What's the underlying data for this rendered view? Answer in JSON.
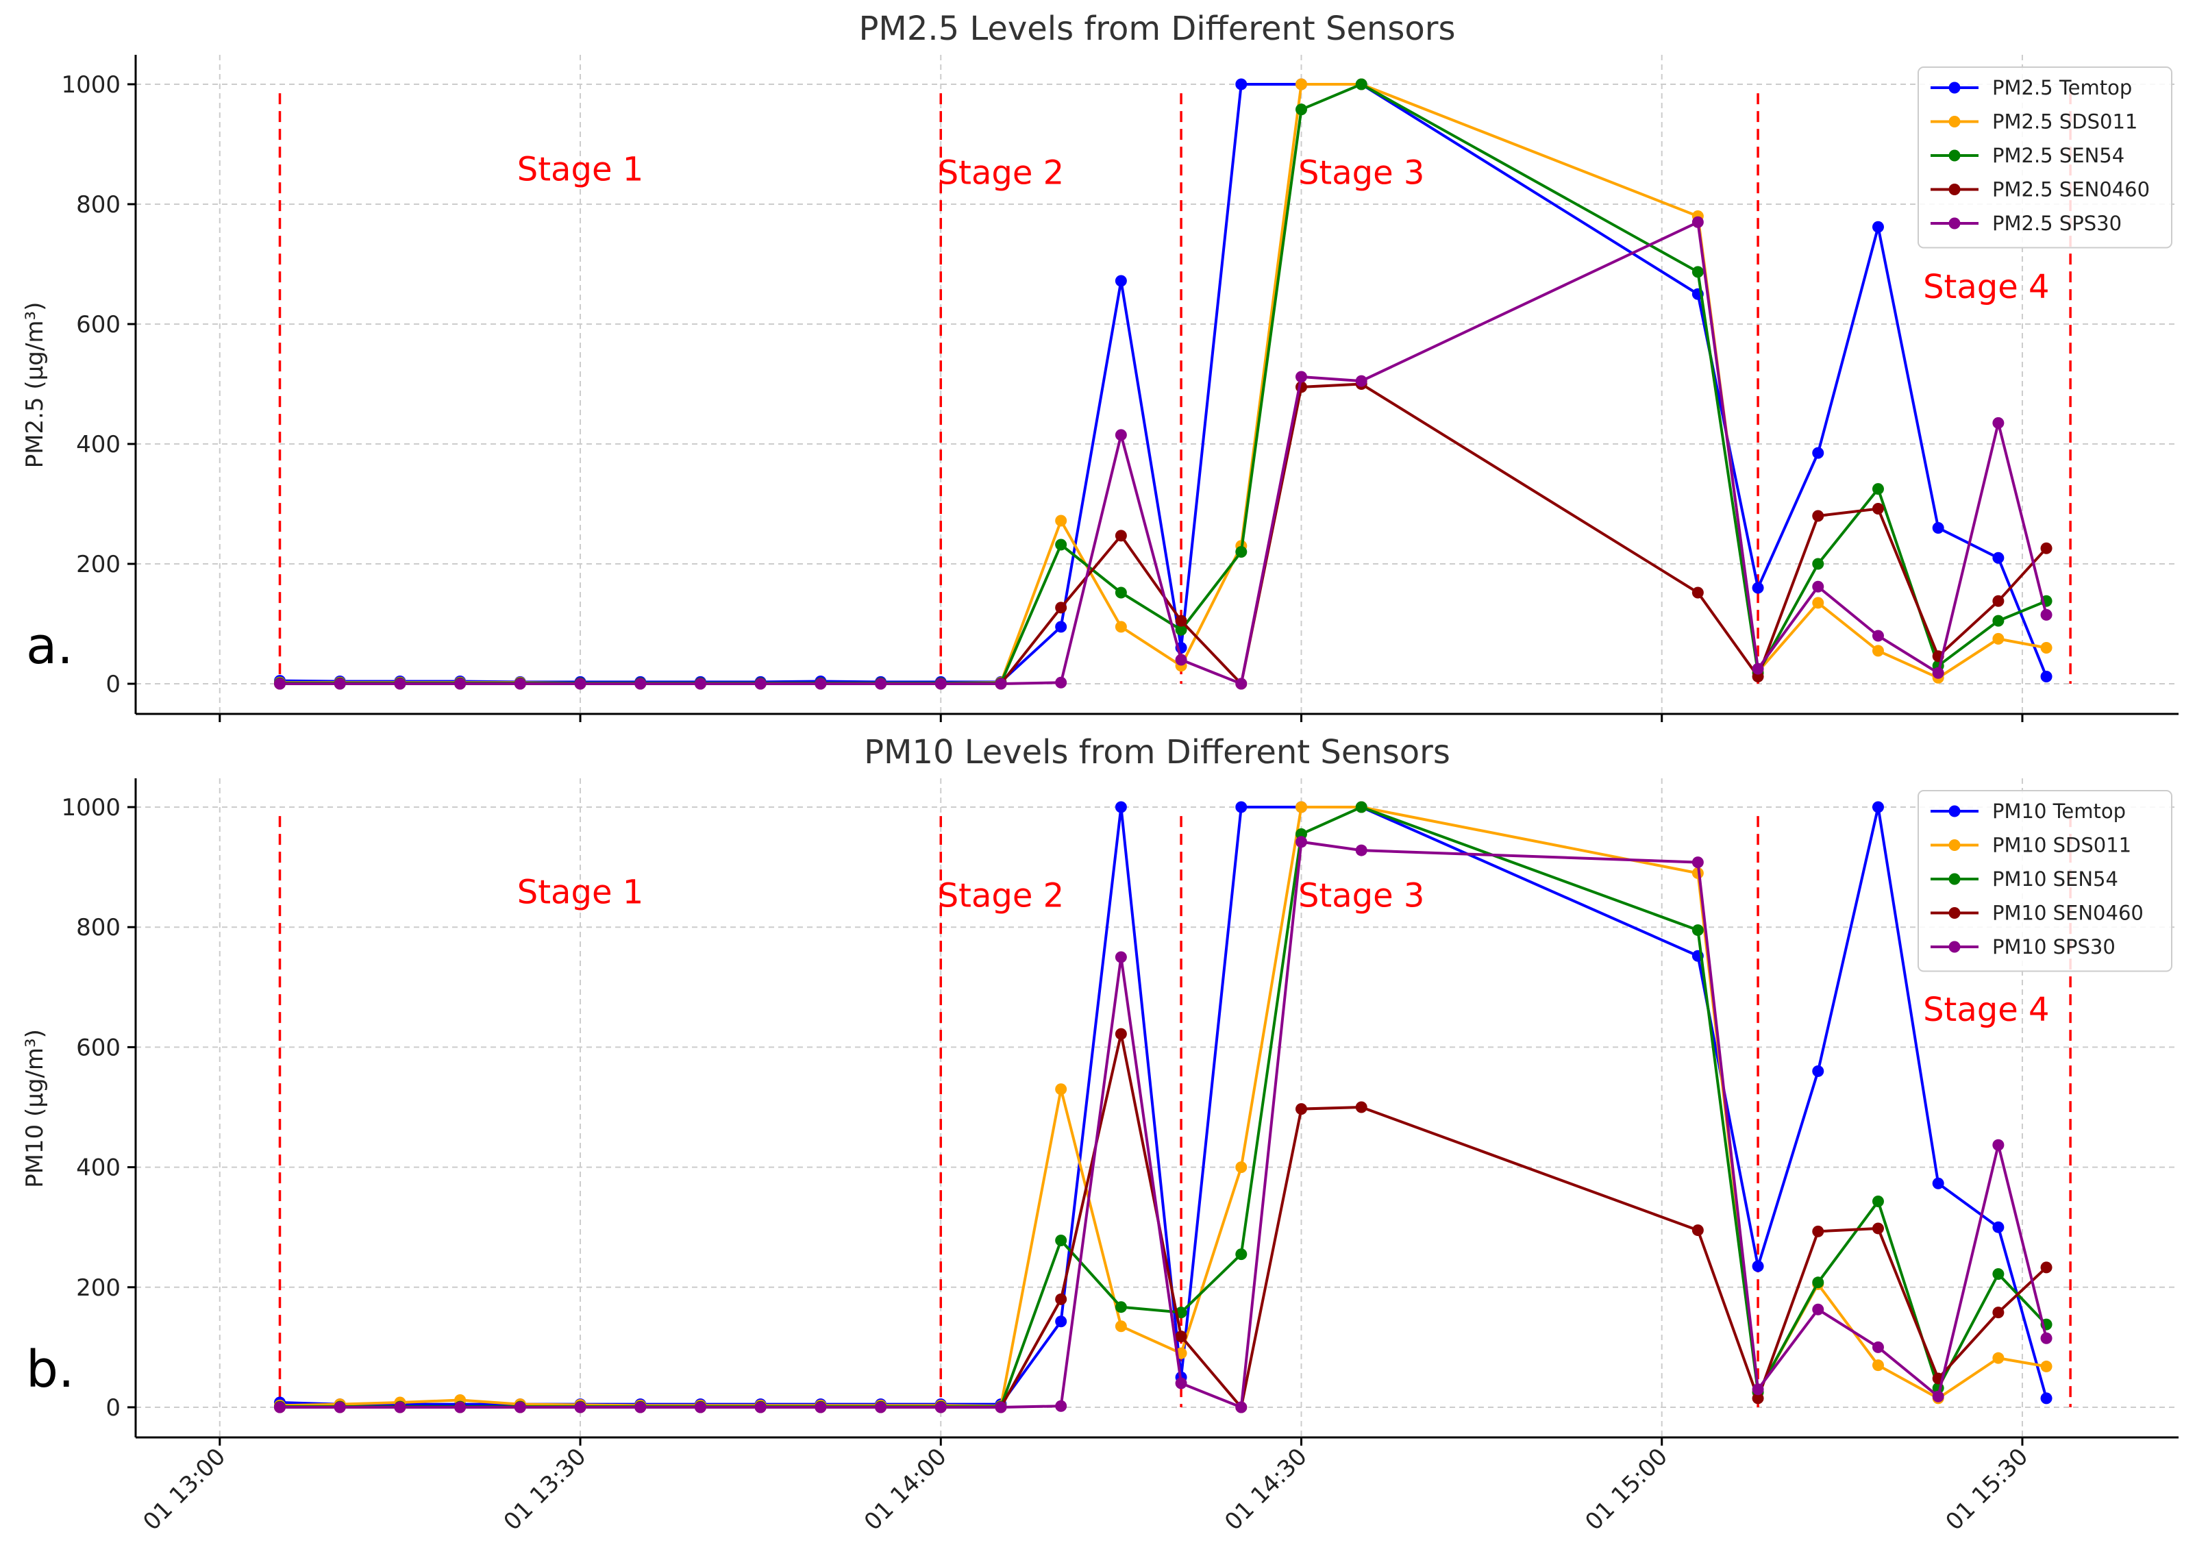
{
  "x_ticks": [
    "01 13:00",
    "01 13:30",
    "01 14:00",
    "01 14:30",
    "01 15:00",
    "01 15:30"
  ],
  "chart_data": [
    {
      "type": "line",
      "panel_label": "a.",
      "title": "PM2.5 Levels from Different Sensors",
      "ylabel": "PM2.5 (µg/m³)",
      "xlabel": "",
      "ylim": [
        0,
        1000
      ],
      "y_ticks": [
        0,
        200,
        400,
        600,
        800,
        1000
      ],
      "xlim_minutes_after_13_00": [
        -7,
        163
      ],
      "grid": true,
      "legend_position": "top-right",
      "x": [
        "13:05",
        "13:10",
        "13:15",
        "13:20",
        "13:25",
        "13:30",
        "13:35",
        "13:40",
        "13:45",
        "13:50",
        "13:55",
        "14:00",
        "14:05",
        "14:10",
        "14:15",
        "14:20",
        "14:25",
        "14:30",
        "14:35",
        "15:03",
        "15:08",
        "15:13",
        "15:18",
        "15:23",
        "15:28",
        "15:32"
      ],
      "series": [
        {
          "name": "PM2.5 Temtop",
          "color": "#0000ff",
          "values": [
            5,
            4,
            4,
            4,
            3,
            3,
            3,
            3,
            3,
            4,
            3,
            3,
            3,
            95,
            672,
            60,
            1000,
            1000,
            1000,
            650,
            160,
            385,
            762,
            260,
            210,
            12
          ]
        },
        {
          "name": "PM2.5 SDS011",
          "color": "#ffa500",
          "values": [
            2,
            2,
            2,
            2,
            2,
            1,
            1,
            1,
            1,
            1,
            1,
            1,
            2,
            272,
            95,
            30,
            230,
            1000,
            1000,
            780,
            20,
            135,
            55,
            10,
            75,
            60
          ]
        },
        {
          "name": "PM2.5 SEN54",
          "color": "#008000",
          "values": [
            1,
            1,
            1,
            1,
            1,
            1,
            1,
            1,
            1,
            1,
            1,
            1,
            1,
            232,
            152,
            90,
            220,
            958,
            1000,
            687,
            18,
            200,
            325,
            30,
            105,
            138
          ]
        },
        {
          "name": "PM2.5 SEN0460",
          "color": "#8b0000",
          "values": [
            0,
            0,
            0,
            0,
            0,
            0,
            0,
            0,
            0,
            0,
            0,
            0,
            0,
            127,
            247,
            105,
            0,
            495,
            500,
            152,
            12,
            280,
            292,
            46,
            138,
            226
          ]
        },
        {
          "name": "PM2.5 SPS30",
          "color": "#8b008b",
          "values": [
            0,
            0,
            0,
            0,
            0,
            0,
            0,
            0,
            0,
            0,
            0,
            0,
            0,
            2,
            415,
            40,
            0,
            512,
            505,
            770,
            25,
            162,
            80,
            18,
            435,
            115
          ]
        }
      ],
      "stage_lines": [
        "13:05",
        "14:00",
        "14:20",
        "15:08",
        "15:34"
      ],
      "stage_labels": [
        {
          "text": "Stage 1",
          "x": "13:30",
          "y": 858
        },
        {
          "text": "Stage 2",
          "x": "14:05",
          "y": 852
        },
        {
          "text": "Stage 3",
          "x": "14:35",
          "y": 852
        },
        {
          "text": "Stage 4",
          "x": "15:27",
          "y": 662
        }
      ]
    },
    {
      "type": "line",
      "panel_label": "b.",
      "title": "PM10 Levels from Different Sensors",
      "ylabel": "PM10 (µg/m³)",
      "xlabel": "",
      "ylim": [
        0,
        1000
      ],
      "y_ticks": [
        0,
        200,
        400,
        600,
        800,
        1000
      ],
      "xlim_minutes_after_13_00": [
        -7,
        163
      ],
      "grid": true,
      "legend_position": "top-right",
      "x": [
        "13:05",
        "13:10",
        "13:15",
        "13:20",
        "13:25",
        "13:30",
        "13:35",
        "13:40",
        "13:45",
        "13:50",
        "13:55",
        "14:00",
        "14:05",
        "14:10",
        "14:15",
        "14:20",
        "14:25",
        "14:30",
        "14:35",
        "15:03",
        "15:08",
        "15:13",
        "15:18",
        "15:23",
        "15:28",
        "15:32"
      ],
      "series": [
        {
          "name": "PM10 Temtop",
          "color": "#0000ff",
          "values": [
            8,
            5,
            5,
            5,
            5,
            5,
            5,
            5,
            5,
            5,
            5,
            5,
            5,
            143,
            1000,
            50,
            1000,
            1000,
            1000,
            752,
            235,
            560,
            1000,
            373,
            300,
            15
          ]
        },
        {
          "name": "PM10 SDS011",
          "color": "#ffa500",
          "values": [
            3,
            5,
            8,
            12,
            5,
            4,
            3,
            3,
            3,
            3,
            3,
            3,
            2,
            530,
            135,
            90,
            400,
            1000,
            1000,
            890,
            25,
            205,
            70,
            15,
            82,
            68
          ]
        },
        {
          "name": "PM10 SEN54",
          "color": "#008000",
          "values": [
            1,
            1,
            1,
            1,
            1,
            1,
            1,
            1,
            1,
            1,
            1,
            1,
            1,
            278,
            167,
            158,
            255,
            955,
            1000,
            795,
            25,
            208,
            343,
            32,
            222,
            138
          ]
        },
        {
          "name": "PM10 SEN0460",
          "color": "#8b0000",
          "values": [
            0,
            0,
            0,
            0,
            0,
            0,
            0,
            0,
            0,
            0,
            0,
            0,
            0,
            180,
            622,
            118,
            0,
            497,
            500,
            295,
            15,
            293,
            298,
            48,
            158,
            233
          ]
        },
        {
          "name": "PM10 SPS30",
          "color": "#8b008b",
          "values": [
            0,
            0,
            0,
            0,
            0,
            0,
            0,
            0,
            0,
            0,
            0,
            0,
            0,
            2,
            750,
            40,
            0,
            942,
            928,
            908,
            30,
            163,
            100,
            18,
            437,
            115
          ]
        }
      ],
      "stage_lines": [
        "13:05",
        "14:00",
        "14:20",
        "15:08",
        "15:34"
      ],
      "stage_labels": [
        {
          "text": "Stage 1",
          "x": "13:30",
          "y": 858
        },
        {
          "text": "Stage 2",
          "x": "14:05",
          "y": 852
        },
        {
          "text": "Stage 3",
          "x": "14:35",
          "y": 852
        },
        {
          "text": "Stage 4",
          "x": "15:27",
          "y": 662
        }
      ]
    }
  ]
}
